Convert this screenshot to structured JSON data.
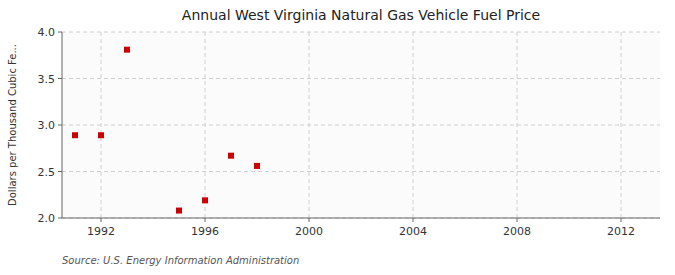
{
  "chart_data": {
    "type": "scatter",
    "title": "Annual West Virginia Natural Gas Vehicle Fuel Price",
    "y_label": "Dollars per Thousand Cubic Fe...",
    "source": "Source: U.S. Energy Information Administration",
    "x": [
      1991,
      1992,
      1993,
      1995,
      1996,
      1997,
      1998
    ],
    "values": [
      2.89,
      2.89,
      3.81,
      2.08,
      2.19,
      2.67,
      2.56
    ],
    "color": "#cc0000",
    "marker": "square",
    "xlim": [
      1990.5,
      2013.5
    ],
    "ylim": [
      2.0,
      4.0
    ],
    "xticks": [
      1992,
      1996,
      2000,
      2004,
      2008,
      2012
    ],
    "yticks": [
      {
        "value": 2.0,
        "label": "2.0"
      },
      2.5,
      {
        "value": 3.0,
        "label": "3.0"
      },
      3.5,
      {
        "value": 4.0,
        "label": "4.0"
      }
    ],
    "grid": true
  }
}
